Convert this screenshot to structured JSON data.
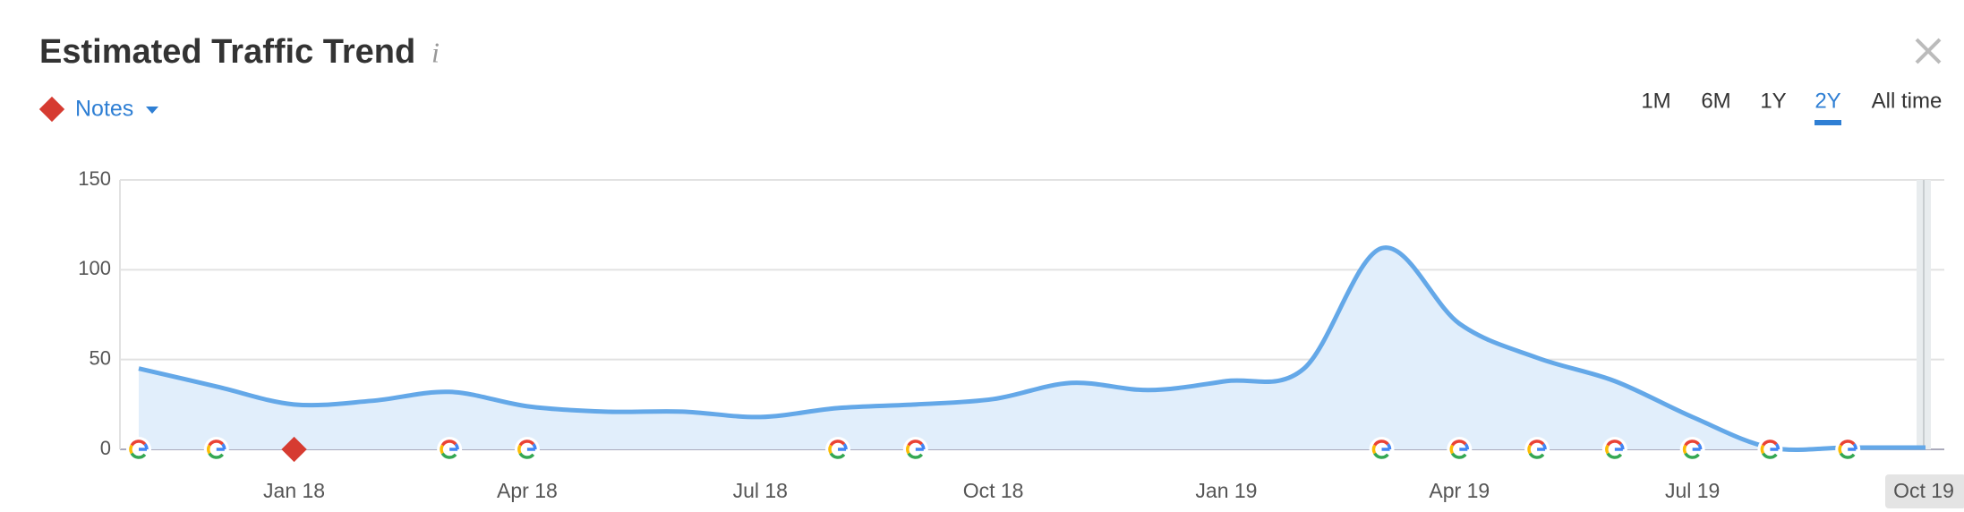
{
  "header": {
    "title": "Estimated Traffic Trend",
    "info": "i",
    "notes": "Notes",
    "ranges": [
      "1M",
      "6M",
      "1Y",
      "2Y",
      "All time"
    ],
    "selected_range": "2Y"
  },
  "chart_data": {
    "type": "area",
    "color": "#64a8e8",
    "fill": "#e1eefb",
    "categories": [
      null,
      null,
      "Jan 18",
      null,
      null,
      "Apr 18",
      null,
      null,
      "Jul 18",
      null,
      null,
      "Oct 18",
      null,
      null,
      "Jan 19",
      null,
      null,
      "Apr 19",
      null,
      null,
      "Jul 19",
      null,
      null,
      "Oct 19"
    ],
    "values": [
      45,
      35,
      25,
      27,
      32,
      24,
      21,
      21,
      18,
      23,
      25,
      28,
      37,
      33,
      38,
      45,
      112,
      70,
      51,
      38,
      18,
      1,
      1,
      1
    ],
    "ylim": [
      0,
      150
    ],
    "yticks": [
      0,
      50,
      100,
      150
    ],
    "grid": true
  }
}
